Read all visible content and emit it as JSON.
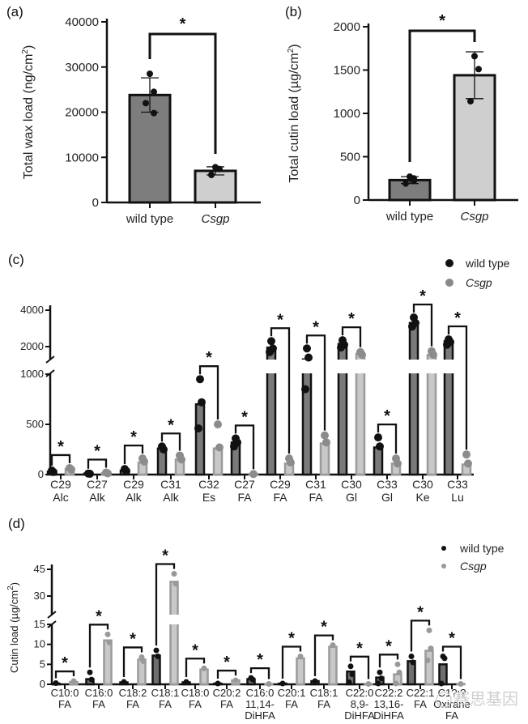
{
  "chart_data": [
    {
      "id": "a",
      "panel_label": "(a)",
      "type": "bar",
      "ylabel": "Total wax load (ng/cm²)",
      "ylim": [
        0,
        40000
      ],
      "yticks": [
        0,
        10000,
        20000,
        30000,
        40000
      ],
      "categories": [
        "wild type",
        "Csgp"
      ],
      "italic_categories": [
        false,
        true
      ],
      "values": [
        23800,
        7000
      ],
      "errors": [
        3800,
        900
      ],
      "points": [
        [
          28500,
          24500,
          22000,
          19800
        ],
        [
          7800,
          7400,
          6100
        ]
      ],
      "significance": [
        {
          "between": [
            0,
            1
          ],
          "label": "*"
        }
      ]
    },
    {
      "id": "b",
      "panel_label": "(b)",
      "type": "bar",
      "ylabel": "Total cutin load (µg/cm²)",
      "ylim": [
        0,
        2000
      ],
      "yticks": [
        0,
        500,
        1000,
        1500,
        2000
      ],
      "categories": [
        "wild type",
        "Csgp"
      ],
      "italic_categories": [
        false,
        true
      ],
      "values": [
        230,
        1440
      ],
      "errors": [
        40,
        270
      ],
      "points": [
        [
          270,
          250,
          190,
          220
        ],
        [
          1660,
          1510,
          1140
        ]
      ],
      "significance": [
        {
          "between": [
            0,
            1
          ],
          "label": "*"
        }
      ]
    },
    {
      "id": "c",
      "panel_label": "(c)",
      "type": "bar",
      "ylabel": "",
      "axis_break": [
        1000,
        2000
      ],
      "ylim": [
        0,
        4000
      ],
      "yticks": [
        0,
        500,
        1000,
        2000,
        4000
      ],
      "legend": {
        "position": "top-right",
        "entries": [
          "wild type",
          "Csgp"
        ],
        "italic": [
          false,
          true
        ]
      },
      "categories": [
        "C29 Alc",
        "C27 Alk",
        "C29 Alk",
        "C31 Alk",
        "C32 Es",
        "C27 FA",
        "C29 FA",
        "C31 FA",
        "C30 Gl",
        "C33 Gl",
        "C30 Ke",
        "C33 Lu"
      ],
      "series": [
        {
          "name": "wild type",
          "color": "#7a7a7a",
          "point_color": "#111111",
          "values": [
            30,
            10,
            40,
            260,
            700,
            320,
            1950,
            1300,
            2150,
            270,
            3300,
            2300
          ],
          "points": [
            [
              40,
              25
            ],
            [
              10,
              8
            ],
            [
              55,
              35
            ],
            [
              280,
              250
            ],
            [
              950,
              720,
              460
            ],
            [
              360,
              320,
              280
            ],
            [
              2300,
              1900,
              1700
            ],
            [
              1900,
              1400,
              850
            ],
            [
              2350,
              2100,
              1950
            ],
            [
              370,
              280
            ],
            [
              3600,
              3300,
              3100
            ],
            [
              2400,
              2250,
              2100
            ]
          ]
        },
        {
          "name": "Csgp",
          "color": "#c8c8c8",
          "point_color": "#8c8c8c",
          "values": [
            55,
            15,
            120,
            150,
            260,
            5,
            110,
            310,
            1600,
            110,
            1550,
            100
          ],
          "points": [
            [
              65,
              50
            ],
            [
              20,
              12
            ],
            [
              160,
              130
            ],
            [
              190,
              150
            ],
            [
              500,
              270
            ],
            [
              5
            ],
            [
              160,
              120
            ],
            [
              390,
              320
            ],
            [
              1700,
              1550
            ],
            [
              160,
              110
            ],
            [
              1750,
              1550
            ],
            [
              200,
              110
            ]
          ]
        }
      ],
      "significance_label": "*"
    },
    {
      "id": "d",
      "panel_label": "(d)",
      "type": "bar",
      "ylabel": "Cutin load (µg/cm²)",
      "axis_break": [
        15,
        20
      ],
      "ylim": [
        0,
        45
      ],
      "yticks": [
        0,
        5,
        10,
        15,
        30,
        45
      ],
      "legend": {
        "position": "top-right",
        "entries": [
          "wild type",
          "Csgp"
        ],
        "italic": [
          false,
          true
        ]
      },
      "categories": [
        [
          "C10:0",
          "FA"
        ],
        [
          "C16:0",
          "FA"
        ],
        [
          "C18:2",
          "FA"
        ],
        [
          "C18:1",
          "FA"
        ],
        [
          "C18:0",
          "FA"
        ],
        [
          "C20:2",
          "FA"
        ],
        [
          "C16:0",
          "11,14-",
          "DiHFA"
        ],
        [
          "C20:1",
          "FA"
        ],
        [
          "C18:1",
          "FA"
        ],
        [
          "C22:0",
          "8,9-",
          "DiHFA"
        ],
        [
          "C22:2",
          "13,16-",
          "DiHFA"
        ],
        [
          "C22:1",
          "FA"
        ],
        [
          "C1?:?",
          "Oxirane",
          "FA"
        ]
      ],
      "series": [
        {
          "name": "wild type",
          "color": "#6e6e6e",
          "point_color": "#111111",
          "values": [
            0.2,
            1.3,
            0.5,
            7.2,
            0.5,
            0.2,
            1.3,
            0.2,
            0.8,
            3.2,
            1.7,
            5.8,
            5.0
          ],
          "points": [
            [
              0.3
            ],
            [
              3.0,
              1.2
            ],
            [
              0.6
            ],
            [
              8.5,
              7.0
            ],
            [
              0.6
            ],
            [
              0.2
            ],
            [
              1.6,
              1.2
            ],
            [
              0.2
            ],
            [
              0.8
            ],
            [
              4.5,
              2.5,
              0.5
            ],
            [
              3.0,
              1.5,
              0.2
            ],
            [
              7.0,
              5.5
            ],
            [
              7.0,
              6.5,
              0.2
            ]
          ]
        },
        {
          "name": "Csgp",
          "color": "#c8c8c8",
          "point_color": "#999999",
          "values": [
            0.6,
            11.0,
            6.2,
            38.0,
            3.7,
            1.0,
            0.1,
            6.5,
            9.4,
            0.1,
            2.5,
            8.4,
            0.1
          ],
          "points": [
            [
              0.8
            ],
            [
              12.5,
              10.5
            ],
            [
              6.8,
              5.8
            ],
            [
              42.5,
              37.0
            ],
            [
              4.0
            ],
            [
              1.0
            ],
            [
              0.1
            ],
            [
              7.0
            ],
            [
              9.8
            ],
            [
              0.1
            ],
            [
              5.0,
              3.0,
              0.2
            ],
            [
              13.5,
              9.0,
              6.0
            ],
            [
              0.1
            ]
          ]
        }
      ],
      "significance_label": "*"
    }
  ],
  "watermark": "赛思基因"
}
